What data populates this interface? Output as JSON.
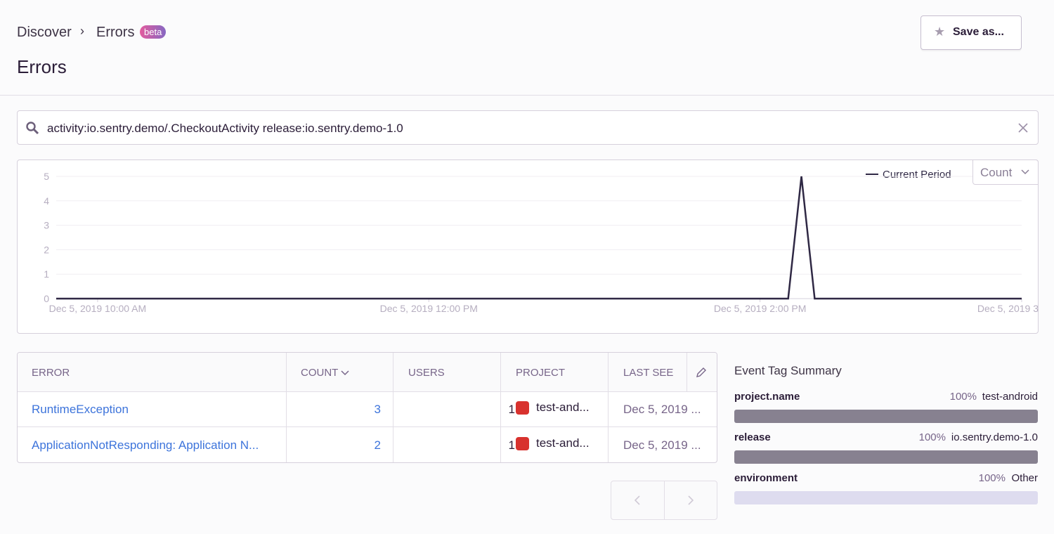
{
  "header": {
    "breadcrumbs": [
      "Discover",
      "Errors"
    ],
    "badge": "beta",
    "title": "Errors",
    "save_button": "Save as..."
  },
  "search": {
    "query": "activity:io.sentry.demo/.CheckoutActivity release:io.sentry.demo-1.0"
  },
  "chart": {
    "type": "line",
    "legend": "Current Period",
    "y_selector": "Count",
    "xlim": [
      9.75,
      15.58
    ],
    "xticks": [
      {
        "value": 10,
        "label": "Dec 5, 2019 10:00 AM"
      },
      {
        "value": 12,
        "label": "Dec 5, 2019 12:00 PM"
      },
      {
        "value": 14,
        "label": "Dec 5, 2019 2:00 PM"
      },
      {
        "value": 15.58,
        "label": "Dec 5, 2019 3"
      }
    ],
    "ylim": [
      0,
      5
    ],
    "yticks": [
      0,
      1,
      2,
      3,
      4,
      5
    ],
    "series": [
      {
        "color": "#2f2844",
        "x": [
          9.75,
          14.17,
          14.25,
          14.33,
          15.58
        ],
        "values": [
          0,
          0,
          5,
          0,
          0
        ]
      }
    ]
  },
  "table": {
    "columns": [
      "ERROR",
      "COUNT",
      "USERS",
      "PROJECT",
      "LAST SEE"
    ],
    "rows": [
      [
        "RuntimeException",
        3,
        1,
        "test-and...",
        "Dec 5, 2019 ..."
      ],
      [
        "ApplicationNotResponding: Application N...",
        2,
        1,
        "test-and...",
        "Dec 5, 2019 ..."
      ]
    ]
  },
  "tag_summary": {
    "title": "Event Tag Summary",
    "tags": [
      {
        "key": "project.name",
        "percent": "100%",
        "value": "test-android"
      },
      {
        "key": "release",
        "percent": "100%",
        "value": "io.sentry.demo-1.0"
      },
      {
        "key": "environment",
        "percent": "100%",
        "value": "Other"
      }
    ]
  }
}
